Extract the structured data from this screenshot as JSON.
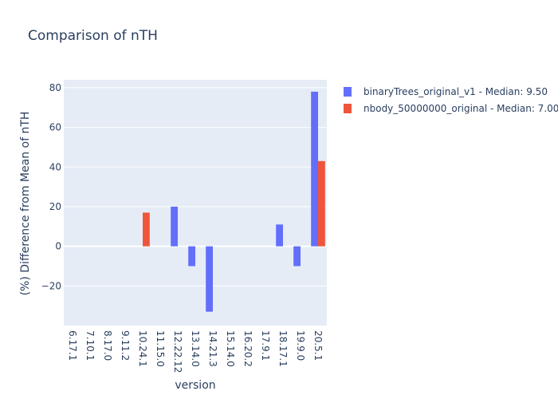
{
  "chart_data": {
    "type": "bar",
    "title": "Comparison of nTH",
    "xlabel": "version",
    "ylabel": "(%) Difference from Mean of nTH",
    "categories": [
      "6.17.1",
      "7.10.1",
      "8.17.0",
      "9.11.2",
      "10.24.1",
      "11.15.0",
      "12.22.12",
      "13.14.0",
      "14.21.3",
      "15.14.0",
      "16.20.2",
      "17.9.1",
      "18.17.1",
      "19.9.0",
      "20.5.1"
    ],
    "ylim": [
      -40,
      84
    ],
    "yticks": [
      -20,
      0,
      20,
      40,
      60,
      80
    ],
    "series": [
      {
        "name": "binaryTrees_original_v1 - Median: 9.50",
        "color": "#636efa",
        "values": [
          0,
          0,
          0,
          0,
          0,
          0,
          20,
          -10,
          -33,
          0,
          0,
          0,
          11,
          -10,
          78
        ]
      },
      {
        "name": "nbody_50000000_original - Median: 7.00",
        "color": "#ef553b",
        "values": [
          0,
          0,
          0,
          0,
          17,
          0,
          0,
          0,
          0,
          0,
          0,
          0,
          0,
          0,
          43
        ]
      }
    ],
    "legend_position": "top-right",
    "grid": true,
    "plot_bgcolor": "#e5ecf6"
  }
}
